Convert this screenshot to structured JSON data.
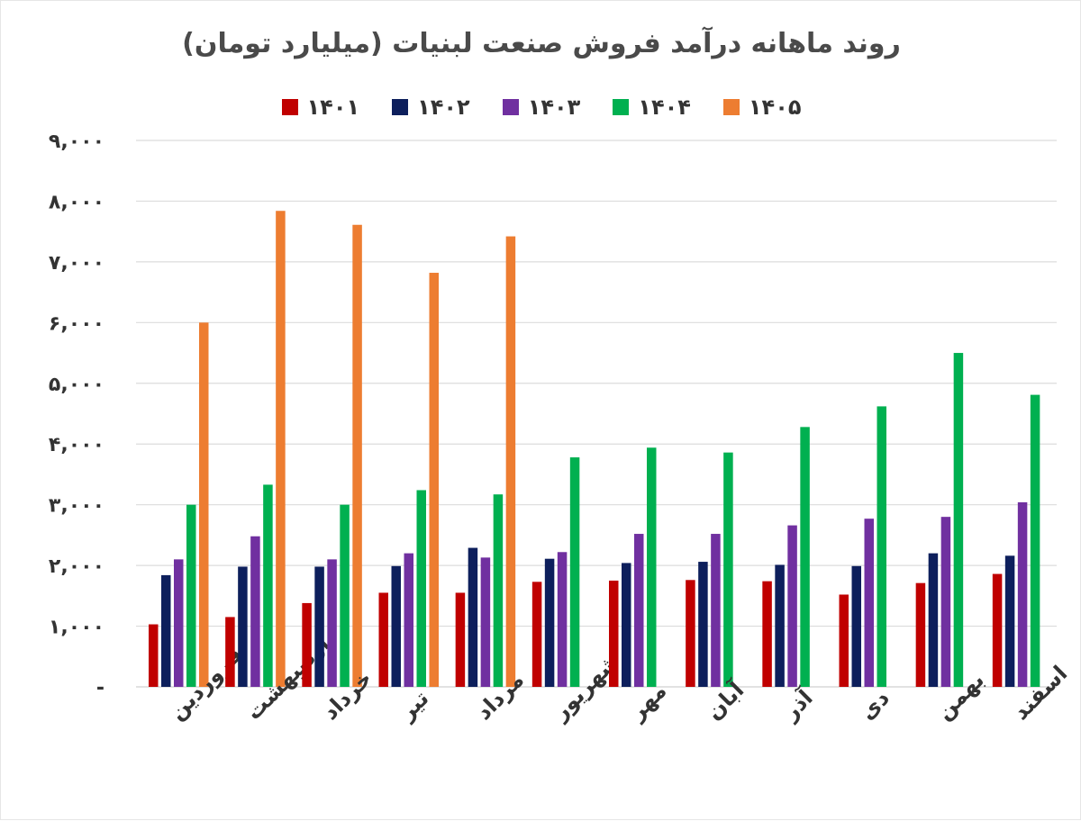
{
  "chart_data": {
    "type": "bar",
    "title": "روند ماهانه درآمد فروش صنعت لبنیات (میلیارد تومان)",
    "xlabel": "",
    "ylabel": "",
    "ylim": [
      0,
      9000
    ],
    "yticks": [
      0,
      1000,
      2000,
      3000,
      4000,
      5000,
      6000,
      7000,
      8000,
      9000
    ],
    "ytick_labels": [
      "-",
      "۱,۰۰۰",
      "۲,۰۰۰",
      "۳,۰۰۰",
      "۴,۰۰۰",
      "۵,۰۰۰",
      "۶,۰۰۰",
      "۷,۰۰۰",
      "۸,۰۰۰",
      "۹,۰۰۰"
    ],
    "grid": true,
    "legend_position": "top",
    "categories": [
      "فروردین",
      "اردیبهشت",
      "خرداد",
      "تیر",
      "مرداد",
      "شهریور",
      "مهر",
      "آبان",
      "آذر",
      "دی",
      "بهمن",
      "اسفند"
    ],
    "series": [
      {
        "name": "۱۴۰۱",
        "color": "#c00000",
        "values": [
          1030,
          1150,
          1380,
          1550,
          1550,
          1730,
          1750,
          1760,
          1740,
          1520,
          1710,
          1860
        ]
      },
      {
        "name": "۱۴۰۲",
        "color": "#0d1f5c",
        "values": [
          1840,
          1980,
          1980,
          1990,
          2290,
          2110,
          2040,
          2060,
          2010,
          1990,
          2200,
          2160
        ]
      },
      {
        "name": "۱۴۰۳",
        "color": "#7030a0",
        "values": [
          2100,
          2480,
          2100,
          2200,
          2130,
          2220,
          2520,
          2520,
          2660,
          2770,
          2800,
          3040
        ]
      },
      {
        "name": "۱۴۰۴",
        "color": "#00b050",
        "values": [
          3000,
          3330,
          3000,
          3240,
          3170,
          3780,
          3940,
          3860,
          4280,
          4620,
          5500,
          4810
        ]
      },
      {
        "name": "۱۴۰۵",
        "color": "#ed7d31",
        "values": [
          6000,
          7840,
          7610,
          6820,
          7420,
          null,
          null,
          null,
          null,
          null,
          null,
          null
        ]
      }
    ]
  }
}
